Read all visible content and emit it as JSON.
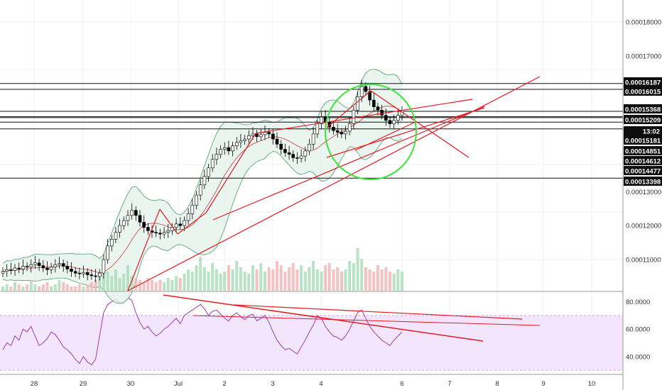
{
  "chart_data": [
    {
      "type": "candlestick",
      "title": "",
      "x_ticks": [
        "28",
        "29",
        "30",
        "Jul",
        "2",
        "3",
        "4",
        "6",
        "7",
        "8",
        "9",
        "10"
      ],
      "y_ticks": [
        "0.00018000",
        "0.00017000",
        "0.00013000",
        "0.00012000",
        "0.00011000"
      ],
      "ylim": [
        0.0001045,
        0.0001875
      ],
      "price_tags": [
        {
          "label": "0.00016187",
          "value": 0.00016187
        },
        {
          "label": "0.00016015",
          "value": 0.00016015
        },
        {
          "label": "0.00015368",
          "value": 0.00015368
        },
        {
          "label": "0.00015209",
          "value": 0.00015209
        },
        {
          "label": "13:02",
          "value": 0.0001505
        },
        {
          "label": "0.00015181",
          "value": 0.00015181
        },
        {
          "label": "0.00014851",
          "value": 0.00014851
        },
        {
          "label": "0.00014612",
          "value": 0.00014612
        },
        {
          "label": "0.00014477",
          "value": 0.00014477
        },
        {
          "label": "0.00013398",
          "value": 0.00013398
        }
      ],
      "horizontal_levels": [
        0.00016187,
        0.00016015,
        0.00015368,
        0.00015209,
        0.0001505,
        0.00015181,
        0.00014851,
        0.00013398
      ],
      "close_series": [
        0.0001065,
        0.000107,
        0.0001068,
        0.0001075,
        0.0001072,
        0.000108,
        0.0001078,
        0.0001085,
        0.000109,
        0.0001082,
        0.0001075,
        0.000107,
        0.0001078,
        0.0001085,
        0.0001088,
        0.000108,
        0.0001072,
        0.0001065,
        0.000106,
        0.0001058,
        0.0001062,
        0.0001055,
        0.0001052,
        0.000105,
        0.000106,
        0.00011,
        0.000114,
        0.000116,
        0.000118,
        0.00012,
        0.0001215,
        0.000123,
        0.0001245,
        0.000123,
        0.000121,
        0.0001195,
        0.0001185,
        0.000118,
        0.0001178,
        0.0001175,
        0.000118,
        0.0001185,
        0.0001195,
        0.0001205,
        0.00012,
        0.0001215,
        0.0001235,
        0.000126,
        0.000129,
        0.000132,
        0.0001345,
        0.000137,
        0.0001395,
        0.000141,
        0.0001425,
        0.000143,
        0.000142,
        0.0001435,
        0.0001445,
        0.000145,
        0.0001455,
        0.0001465,
        0.000147,
        0.0001462,
        0.0001468,
        0.0001475,
        0.000147,
        0.0001455,
        0.000144,
        0.0001425,
        0.0001415,
        0.000141,
        0.00014,
        0.0001398,
        0.0001405,
        0.000142,
        0.000144,
        0.000147,
        0.00015,
        0.000152,
        0.0001505,
        0.000149,
        0.000148,
        0.0001475,
        0.000147,
        0.0001478,
        0.00015,
        0.000154,
        0.000158,
        0.000161,
        0.0001595,
        0.000157,
        0.000155,
        0.000154,
        0.0001525,
        0.000151,
        0.00015,
        0.000151,
        0.0001525,
        0.000154
      ],
      "volume_series": [
        2,
        3,
        2,
        4,
        3,
        2,
        3,
        5,
        3,
        2,
        3,
        4,
        2,
        3,
        5,
        4,
        3,
        2,
        2,
        3,
        2,
        3,
        4,
        5,
        8,
        14,
        9,
        7,
        10,
        6,
        8,
        12,
        7,
        6,
        5,
        4,
        6,
        5,
        4,
        5,
        4,
        6,
        5,
        7,
        6,
        8,
        10,
        9,
        12,
        16,
        11,
        9,
        13,
        10,
        8,
        9,
        12,
        10,
        14,
        11,
        9,
        8,
        12,
        10,
        13,
        9,
        11,
        10,
        14,
        12,
        9,
        11,
        13,
        10,
        12,
        9,
        11,
        14,
        10,
        9,
        12,
        13,
        10,
        11,
        9,
        10,
        14,
        13,
        20,
        15,
        11,
        10,
        9,
        12,
        10,
        11,
        9,
        8,
        10,
        9
      ],
      "rsi": {
        "y_ticks": [
          "80.0000",
          "60.0000",
          "40.0000"
        ],
        "ylim": [
          28,
          86
        ],
        "band": [
          30,
          70
        ],
        "values": [
          45,
          50,
          48,
          55,
          52,
          60,
          58,
          62,
          55,
          48,
          50,
          53,
          58,
          56,
          52,
          47,
          45,
          42,
          38,
          35,
          40,
          36,
          34,
          38,
          55,
          72,
          78,
          80,
          82,
          79,
          80,
          83,
          81,
          72,
          65,
          60,
          62,
          58,
          55,
          57,
          60,
          62,
          65,
          68,
          64,
          70,
          72,
          74,
          76,
          78,
          75,
          70,
          73,
          74,
          71,
          68,
          66,
          70,
          72,
          69,
          67,
          70,
          71,
          66,
          68,
          70,
          65,
          58,
          52,
          48,
          45,
          46,
          44,
          42,
          47,
          52,
          58,
          63,
          70,
          68,
          62,
          58,
          55,
          54,
          52,
          55,
          60,
          66,
          72,
          74,
          68,
          62,
          58,
          55,
          52,
          50,
          48,
          52,
          55,
          58
        ]
      }
    }
  ]
}
